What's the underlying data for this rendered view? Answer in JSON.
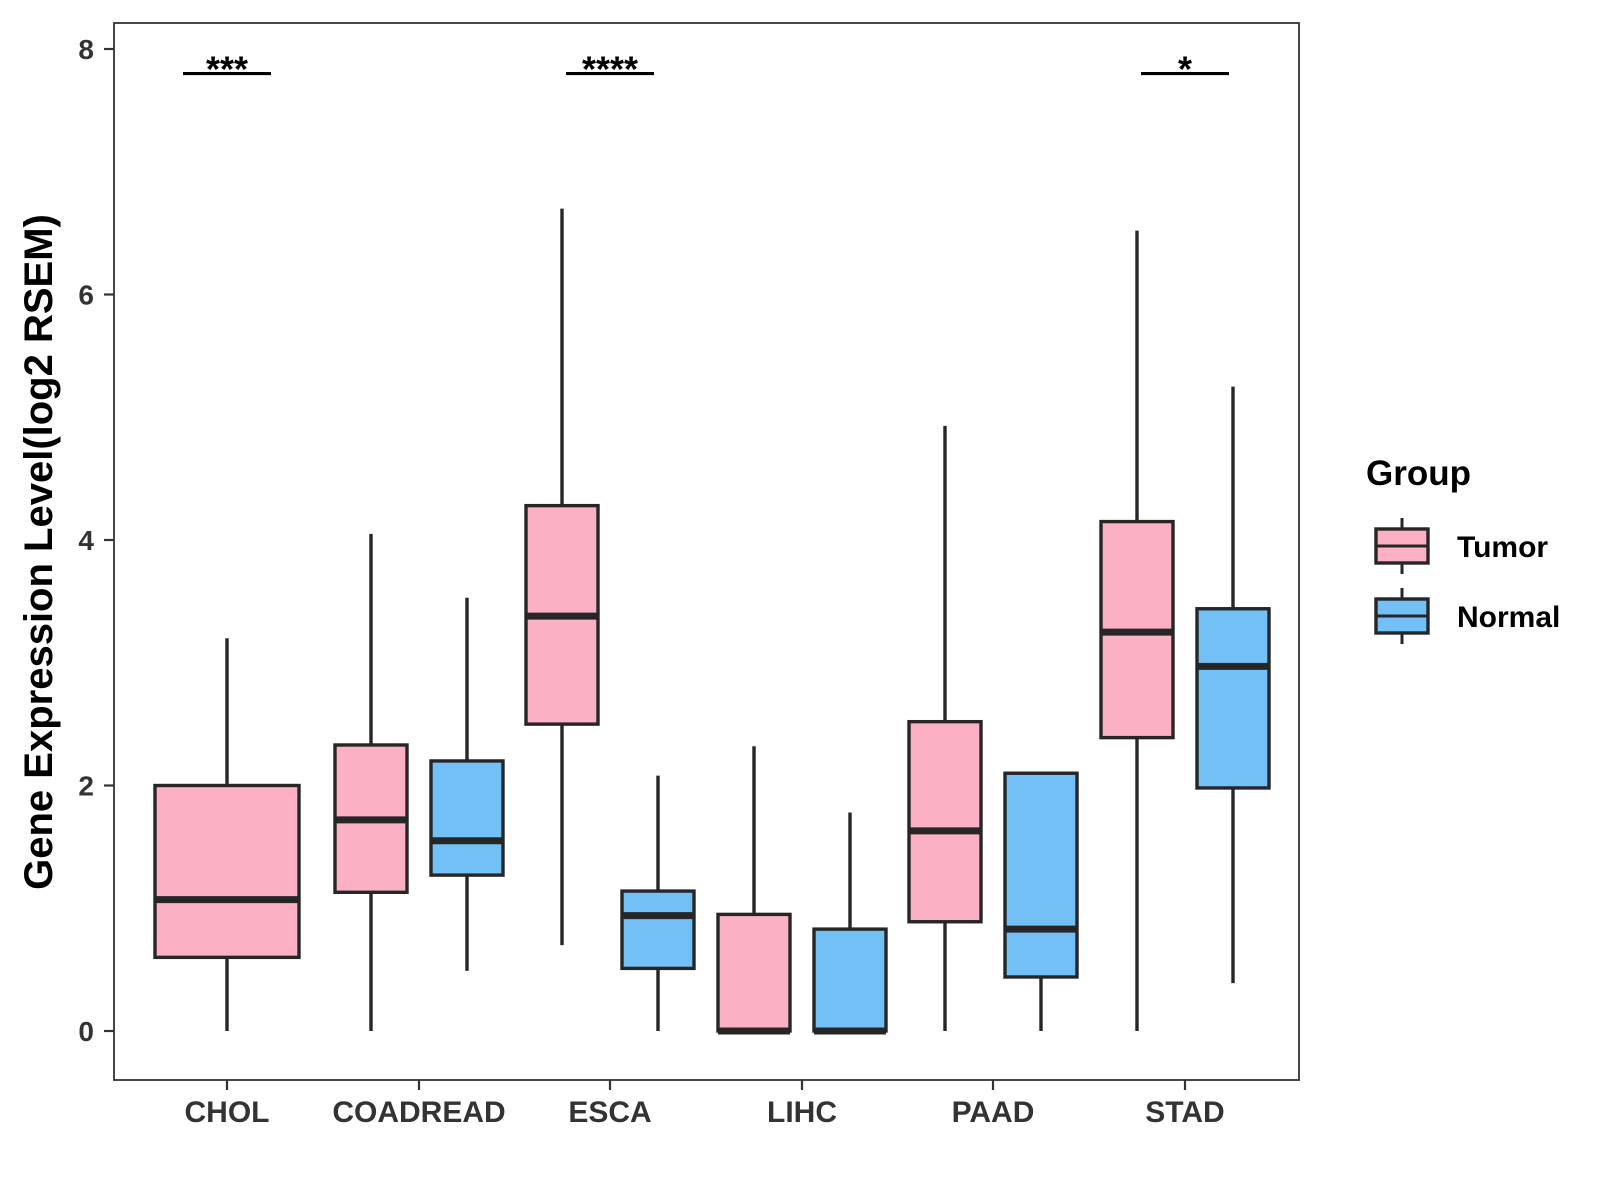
{
  "chart_data": {
    "type": "boxplot",
    "title": "",
    "xlabel": "",
    "ylabel": "Gene Expression Level(log2 RSEM)",
    "ylim": [
      -0.35,
      8.25
    ],
    "yticks": [
      0,
      2,
      4,
      6,
      8
    ],
    "categories": [
      "CHOL",
      "COADREAD",
      "ESCA",
      "LIHC",
      "PAAD",
      "STAD"
    ],
    "grid": false,
    "legend_position": "right",
    "series": [
      {
        "name": "Tumor",
        "color": "#FBB1C3",
        "boxes": [
          {
            "category": "CHOL",
            "min": 0.0,
            "q1": 0.6,
            "median": 1.07,
            "q3": 2.0,
            "max": 3.2
          },
          {
            "category": "COADREAD",
            "min": 0.0,
            "q1": 1.13,
            "median": 1.72,
            "q3": 2.33,
            "max": 4.05
          },
          {
            "category": "ESCA",
            "min": 0.7,
            "q1": 2.5,
            "median": 3.38,
            "q3": 4.28,
            "max": 6.7
          },
          {
            "category": "LIHC",
            "min": 0.0,
            "q1": 0.0,
            "median": 0.0,
            "q3": 0.95,
            "max": 2.32
          },
          {
            "category": "PAAD",
            "min": 0.0,
            "q1": 0.89,
            "median": 1.63,
            "q3": 2.52,
            "max": 4.93
          },
          {
            "category": "STAD",
            "min": 0.0,
            "q1": 2.39,
            "median": 3.25,
            "q3": 4.15,
            "max": 6.52
          }
        ]
      },
      {
        "name": "Normal",
        "color": "#73C0F6",
        "boxes": [
          {
            "category": "COADREAD",
            "min": 0.49,
            "q1": 1.27,
            "median": 1.55,
            "q3": 2.2,
            "max": 3.53
          },
          {
            "category": "ESCA",
            "min": 0.0,
            "q1": 0.51,
            "median": 0.94,
            "q3": 1.14,
            "max": 2.08
          },
          {
            "category": "LIHC",
            "min": 0.0,
            "q1": 0.0,
            "median": 0.0,
            "q3": 0.83,
            "max": 1.78
          },
          {
            "category": "PAAD",
            "min": 0.0,
            "q1": 0.44,
            "median": 0.83,
            "q3": 2.1,
            "max": 2.1
          },
          {
            "category": "STAD",
            "min": 0.39,
            "q1": 1.98,
            "median": 2.97,
            "q3": 3.44,
            "max": 5.25
          }
        ]
      }
    ],
    "annotations": [
      {
        "category": "CHOL",
        "text": "***",
        "y": 7.8
      },
      {
        "category": "ESCA",
        "text": "****",
        "y": 7.8
      },
      {
        "category": "STAD",
        "text": "*",
        "y": 7.8
      }
    ],
    "legend": {
      "title": "Group",
      "items": [
        {
          "label": "Tumor",
          "color": "#FBB1C3"
        },
        {
          "label": "Normal",
          "color": "#73C0F6"
        }
      ]
    },
    "colors": {
      "axis": "#333333",
      "box_border": "#262626",
      "text": "#000000"
    }
  }
}
